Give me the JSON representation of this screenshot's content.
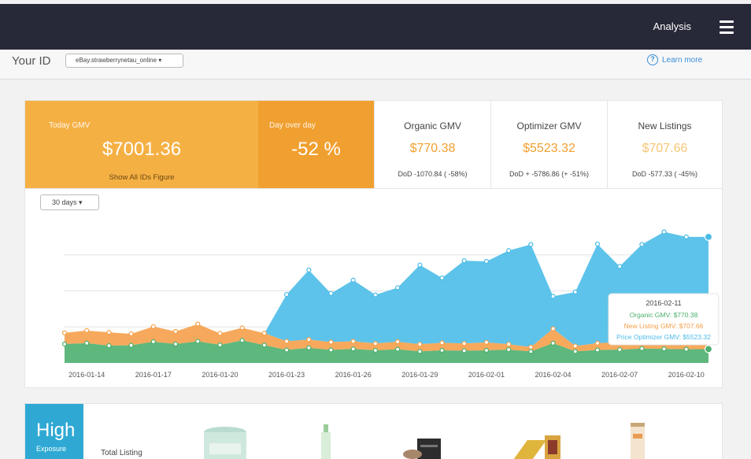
{
  "header": {
    "title": "Analysis",
    "menu_icon": "hamburger-menu-icon"
  },
  "idbar": {
    "label": "Your ID",
    "selected_id": "eBay.strawberrynetau_online ▾",
    "learn_more": "Learn more"
  },
  "kpis": {
    "today_gmv_label": "Today GMV",
    "today_gmv_value": "$7001.36",
    "show_all_link": "Show All IDs Figure",
    "dod_label": "Day over day",
    "dod_value": "-52 %",
    "organic_title": "Organic GMV",
    "organic_value": "$770.38",
    "organic_sub": "DoD -1070.84 ( -58%)",
    "optimizer_title": "Optimizer GMV",
    "optimizer_value": "$5523.32",
    "optimizer_sub": "DoD + -5786.86 (+ -51%)",
    "listings_title": "New Listings",
    "listings_value": "$707.66",
    "listings_sub": "DoD -577.33 ( -45%)"
  },
  "range_select": "30 days ▾",
  "colors": {
    "organic": "#4caf6e",
    "new_listing": "#f5a04a",
    "optimizer": "#4bbce8",
    "orange": "#f0a030",
    "navy": "#272838"
  },
  "chart_data": {
    "type": "area",
    "x": [
      "2016-01-13",
      "2016-01-14",
      "2016-01-15",
      "2016-01-16",
      "2016-01-17",
      "2016-01-18",
      "2016-01-19",
      "2016-01-20",
      "2016-01-21",
      "2016-01-22",
      "2016-01-23",
      "2016-01-24",
      "2016-01-25",
      "2016-01-26",
      "2016-01-27",
      "2016-01-28",
      "2016-01-29",
      "2016-01-30",
      "2016-01-31",
      "2016-02-01",
      "2016-02-02",
      "2016-02-03",
      "2016-02-04",
      "2016-02-05",
      "2016-02-06",
      "2016-02-07",
      "2016-02-08",
      "2016-02-09",
      "2016-02-10",
      "2016-02-11"
    ],
    "xticks": [
      "2016-01-14",
      "2016-01-17",
      "2016-01-20",
      "2016-01-23",
      "2016-01-26",
      "2016-01-29",
      "2016-02-01",
      "2016-02-04",
      "2016-02-07",
      "2016-02-10"
    ],
    "series": [
      {
        "name": "Organic GMV",
        "values": [
          1050,
          1100,
          960,
          980,
          1180,
          1050,
          1200,
          1000,
          1250,
          990,
          720,
          840,
          720,
          780,
          700,
          760,
          640,
          700,
          680,
          700,
          740,
          640,
          1100,
          640,
          720,
          740,
          800,
          780,
          760,
          770
        ]
      },
      {
        "name": "New Listing GMV",
        "values": [
          620,
          700,
          740,
          640,
          840,
          700,
          960,
          640,
          700,
          660,
          480,
          460,
          440,
          420,
          380,
          420,
          400,
          420,
          400,
          440,
          300,
          240,
          800,
          300,
          380,
          420,
          380,
          300,
          340,
          708
        ]
      },
      {
        "name": "Price Optimizer GMV",
        "values": [
          0,
          0,
          0,
          0,
          0,
          0,
          0,
          0,
          0,
          0,
          2600,
          3860,
          2700,
          3400,
          2700,
          3000,
          4400,
          3600,
          4600,
          4500,
          5200,
          5700,
          1800,
          3000,
          5500,
          4200,
          5400,
          6200,
          5900,
          5523
        ]
      }
    ],
    "tooltip": {
      "date": "2016-02-11",
      "lines": [
        "Organic GMV: $770.38",
        "New Listing GMV: $707.66",
        "Price Optimizer GMV: $5523.32"
      ]
    },
    "ylim": [
      0,
      8000
    ]
  },
  "bottom": {
    "badge_title": "High",
    "badge_sub": "Exposure",
    "total_label": "Total Listing"
  }
}
